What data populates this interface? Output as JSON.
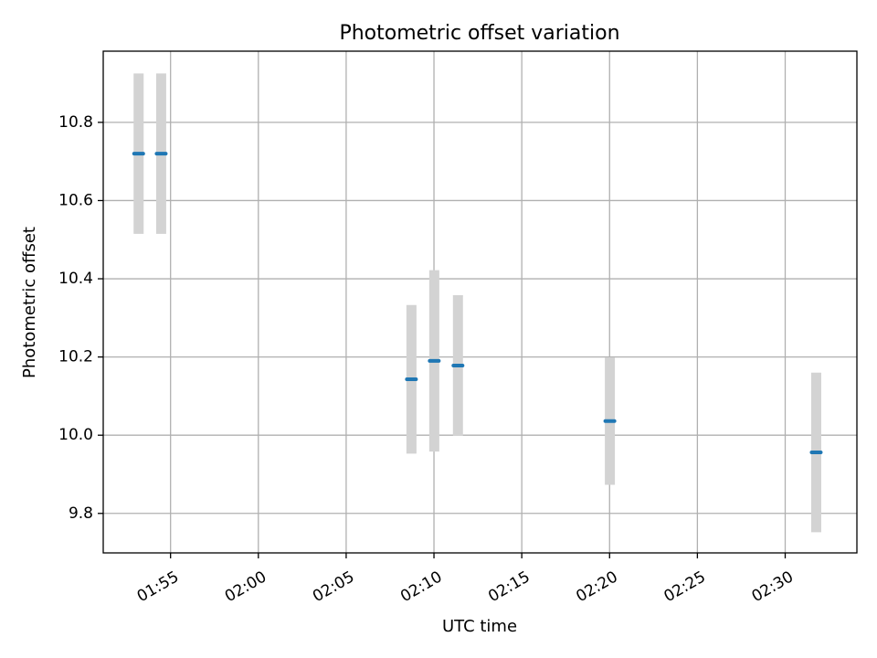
{
  "chart_data": {
    "type": "scatter",
    "title": "Photometric offset variation",
    "xlabel": "UTC time",
    "ylabel": "Photometric offset",
    "x_tick_labels": [
      "01:55",
      "02:00",
      "02:05",
      "02:10",
      "02:15",
      "02:20",
      "02:25",
      "02:30"
    ],
    "y_tick_labels": [
      "9.8",
      "10.0",
      "10.2",
      "10.4",
      "10.6",
      "10.8"
    ],
    "xlim": [
      "01:51:10",
      "02:34:05"
    ],
    "ylim": [
      9.699,
      10.982
    ],
    "x_ticks": [
      "01:55",
      "02:00",
      "02:05",
      "02:10",
      "02:15",
      "02:20",
      "02:25",
      "02:30"
    ],
    "y_ticks": [
      9.8,
      10.0,
      10.2,
      10.4,
      10.6,
      10.8
    ],
    "grid": true,
    "series": [
      {
        "marker_color": "#1f77b4",
        "errorbar_color": "#d3d3d3",
        "points": [
          {
            "time": "01:53:11",
            "value": 10.72,
            "error": 0.205
          },
          {
            "time": "01:54:28",
            "value": 10.72,
            "error": 0.205
          },
          {
            "time": "02:08:43",
            "value": 10.143,
            "error": 0.19
          },
          {
            "time": "02:10:01",
            "value": 10.19,
            "error": 0.232
          },
          {
            "time": "02:11:22",
            "value": 10.178,
            "error": 0.18
          },
          {
            "time": "02:20:01",
            "value": 10.036,
            "error": 0.163
          },
          {
            "time": "02:31:46",
            "value": 9.956,
            "error": 0.204
          }
        ]
      }
    ]
  }
}
